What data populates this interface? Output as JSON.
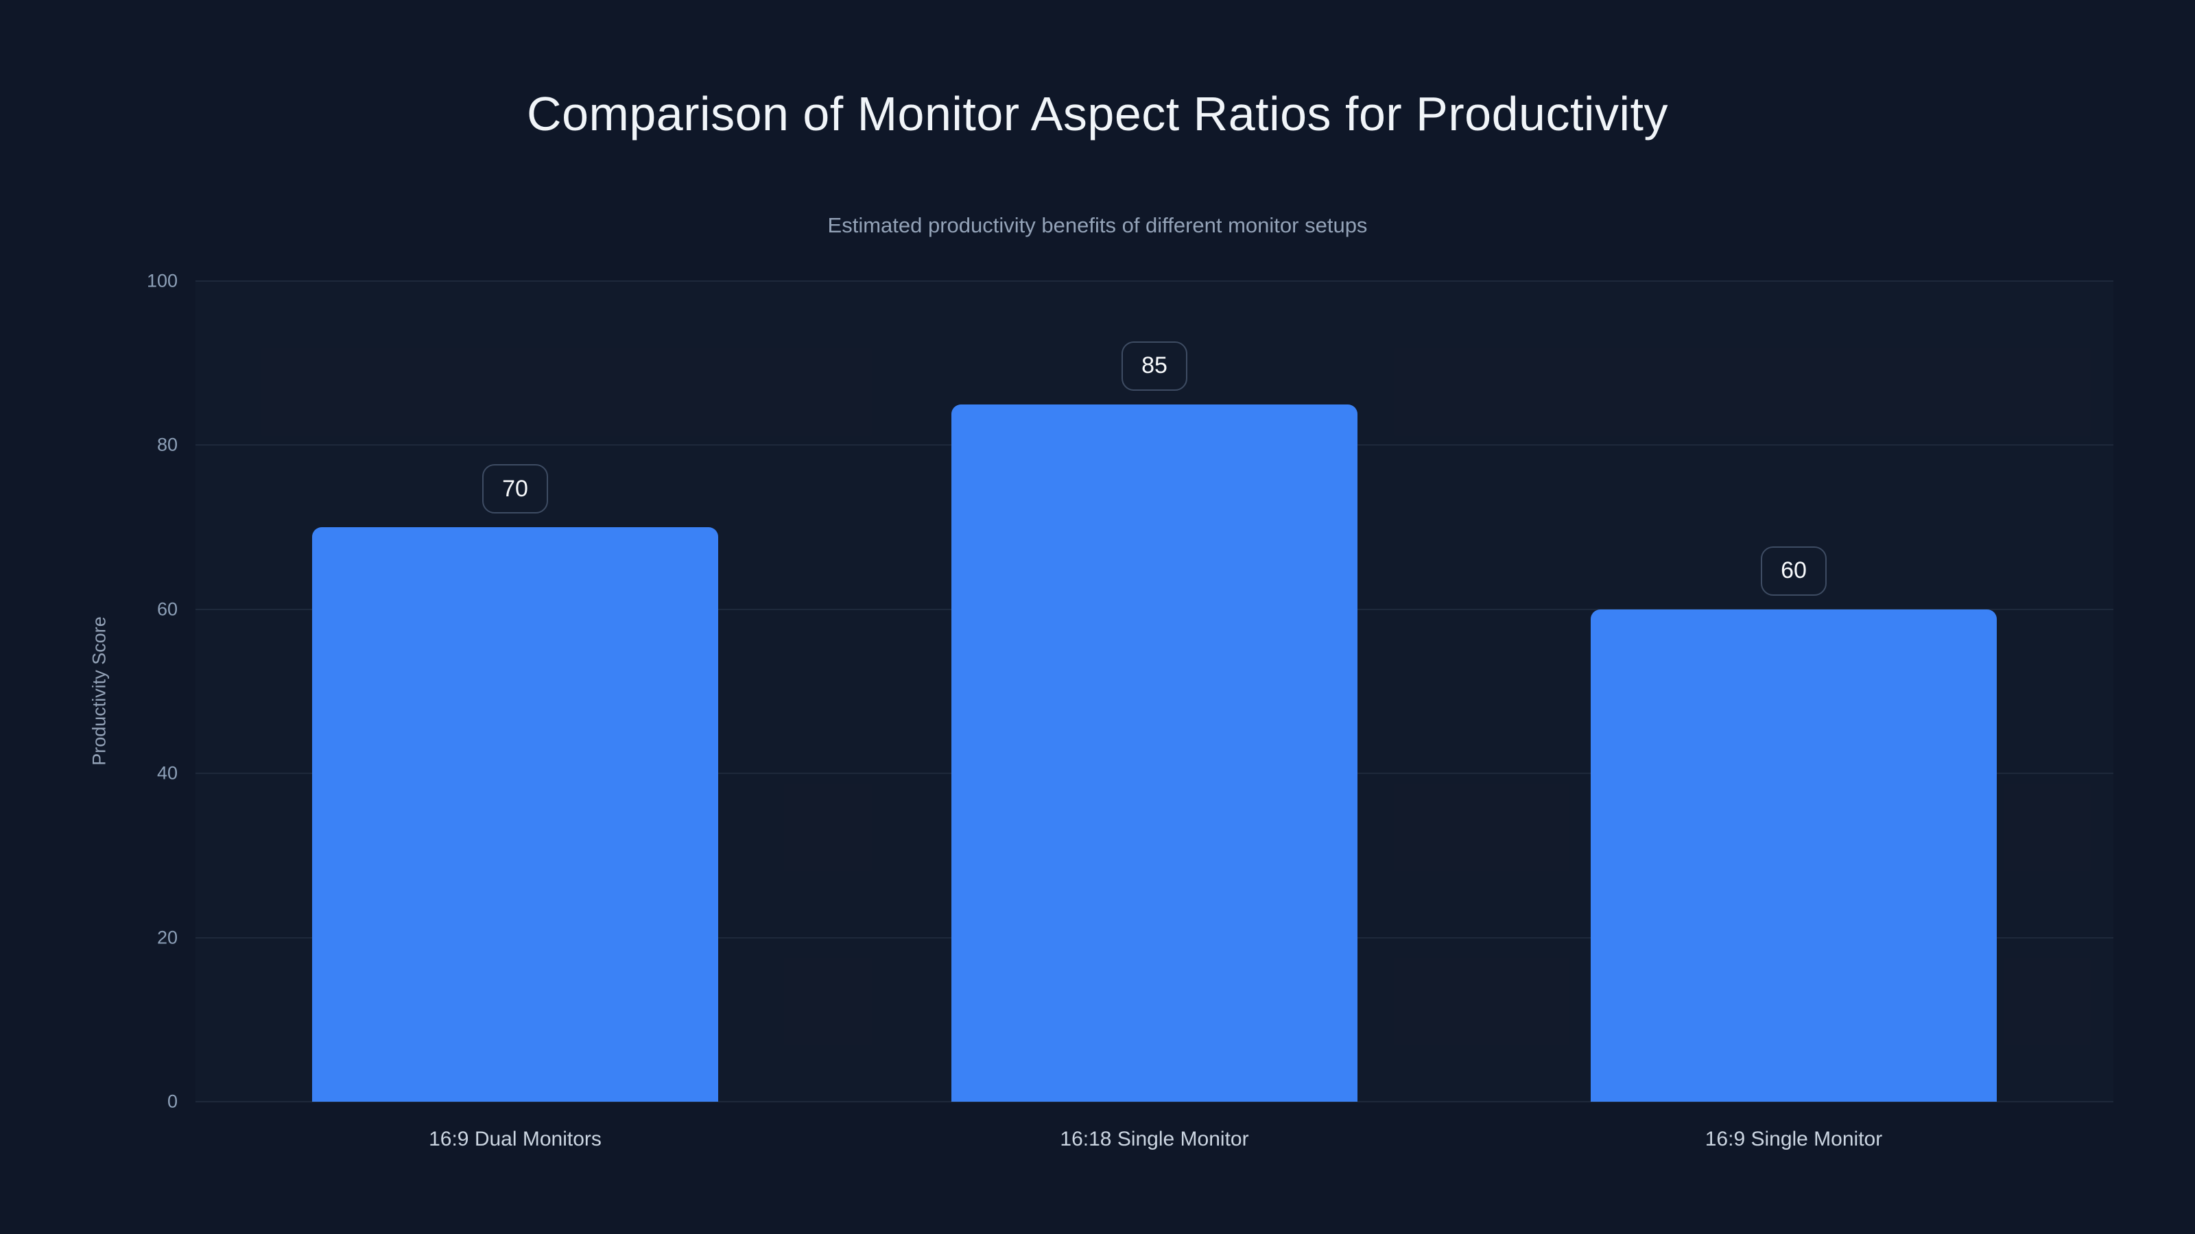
{
  "chart_data": {
    "type": "bar",
    "title": "Comparison of Monitor Aspect Ratios for Productivity",
    "subtitle": "Estimated productivity benefits of different monitor setups",
    "categories": [
      "16:9 Dual Monitors",
      "16:18 Single Monitor",
      "16:9 Single Monitor"
    ],
    "values": [
      70,
      85,
      60
    ],
    "value_labels": [
      "70",
      "85",
      "60"
    ],
    "xlabel": "",
    "ylabel": "Productivity Score",
    "ylim": [
      0,
      100
    ],
    "yticks": [
      0,
      20,
      40,
      60,
      80,
      100
    ],
    "grid": "horizontal",
    "legend": "none"
  },
  "colors": {
    "background": "#0f1728",
    "bar": "#3b82f6",
    "grid": "#1e293b",
    "title": "#f1f5f9",
    "subtitle": "#94a3b8",
    "tick_label": "#8da0b8",
    "axis_label": "#94a3b8",
    "x_label": "#cbd5e1",
    "badge_border": "#3e4c63",
    "badge_text": "#f8fafc"
  }
}
